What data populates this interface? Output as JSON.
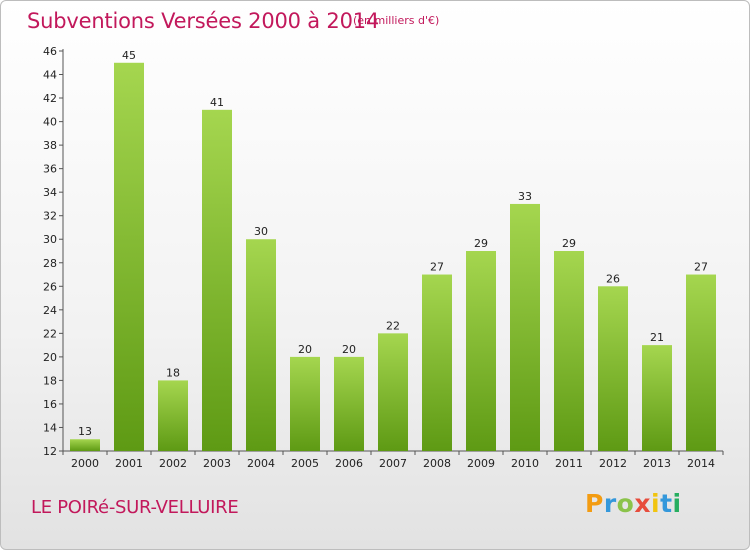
{
  "header": {
    "title": "Subventions Versées 2000 à 2014",
    "subtitle": "(en milliers d'€)"
  },
  "footer": {
    "commune": "LE POIRé-SUR-VELLUIRE",
    "logo": "Proxiti",
    "logo_colors": [
      "#f39c12",
      "#3498db",
      "#8bc34a",
      "#e74c3c",
      "#f1c40f",
      "#3498db",
      "#27ae60"
    ]
  },
  "colors": {
    "bar_light": "#a5d64f",
    "bar_dark": "#5e9a14",
    "accent": "#c2185b"
  },
  "chart_data": {
    "type": "bar",
    "categories": [
      "2000",
      "2001",
      "2002",
      "2003",
      "2004",
      "2005",
      "2006",
      "2007",
      "2008",
      "2009",
      "2010",
      "2011",
      "2012",
      "2013",
      "2014"
    ],
    "values": [
      13,
      45,
      18,
      41,
      30,
      20,
      20,
      22,
      27,
      29,
      33,
      29,
      26,
      21,
      27
    ],
    "title": "Subventions Versées 2000 à 2014",
    "subtitle": "(en milliers d'€)",
    "xlabel": "",
    "ylabel": "",
    "ylim": [
      12,
      46
    ],
    "yticks": [
      12,
      14,
      16,
      18,
      20,
      22,
      24,
      26,
      28,
      30,
      32,
      34,
      36,
      38,
      40,
      42,
      44,
      46
    ],
    "grid": false,
    "legend": "none"
  }
}
